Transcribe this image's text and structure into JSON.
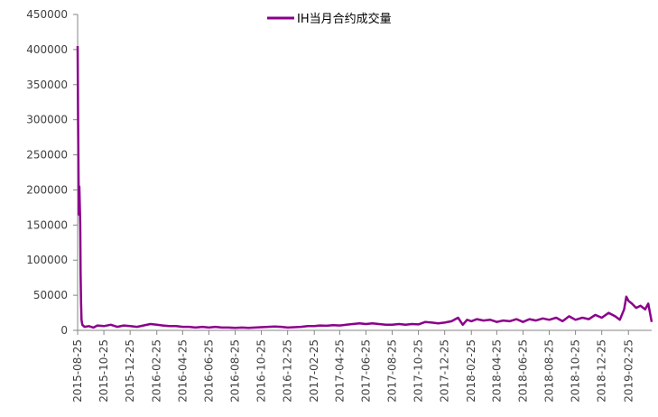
{
  "chart_data": {
    "type": "line",
    "title": "",
    "xlabel": "",
    "ylabel": "",
    "ylim": [
      0,
      450000
    ],
    "y_ticks": [
      0,
      50000,
      100000,
      150000,
      200000,
      250000,
      300000,
      350000,
      400000,
      450000
    ],
    "y_tick_labels": [
      "0",
      "50000",
      "100000",
      "150000",
      "200000",
      "250000",
      "300000",
      "350000",
      "400000",
      "450000"
    ],
    "x_tick_labels": [
      "2015-08-25",
      "2015-10-25",
      "2015-12-25",
      "2016-02-25",
      "2016-04-25",
      "2016-06-25",
      "2016-08-25",
      "2016-10-25",
      "2016-12-25",
      "2017-02-25",
      "2017-04-25",
      "2017-06-25",
      "2017-08-25",
      "2017-10-25",
      "2017-12-25",
      "2018-02-25",
      "2018-04-25",
      "2018-06-25",
      "2018-08-25",
      "2018-10-25",
      "2018-12-25",
      "2019-02-25"
    ],
    "xlim": [
      "2015-08-25",
      "2019-04-20"
    ],
    "grid": false,
    "legend_position": "top",
    "color": "#8B008B",
    "series": [
      {
        "name": "IH当月合约成交量",
        "points": [
          [
            "2015-08-25",
            405000
          ],
          [
            "2015-08-26",
            300000
          ],
          [
            "2015-08-27",
            220000
          ],
          [
            "2015-08-28",
            165000
          ],
          [
            "2015-08-29",
            205000
          ],
          [
            "2015-08-31",
            150000
          ],
          [
            "2015-09-01",
            80000
          ],
          [
            "2015-09-02",
            40000
          ],
          [
            "2015-09-03",
            15000
          ],
          [
            "2015-09-05",
            8000
          ],
          [
            "2015-09-10",
            5000
          ],
          [
            "2015-09-20",
            6000
          ],
          [
            "2015-10-01",
            4000
          ],
          [
            "2015-10-10",
            7000
          ],
          [
            "2015-10-25",
            6000
          ],
          [
            "2015-11-10",
            8000
          ],
          [
            "2015-11-25",
            5000
          ],
          [
            "2015-12-10",
            7000
          ],
          [
            "2015-12-25",
            6000
          ],
          [
            "2016-01-10",
            5000
          ],
          [
            "2016-01-25",
            7000
          ],
          [
            "2016-02-10",
            9000
          ],
          [
            "2016-02-25",
            8000
          ],
          [
            "2016-03-10",
            7000
          ],
          [
            "2016-03-25",
            6000
          ],
          [
            "2016-04-10",
            6000
          ],
          [
            "2016-04-25",
            5000
          ],
          [
            "2016-05-10",
            5000
          ],
          [
            "2016-05-25",
            4000
          ],
          [
            "2016-06-10",
            5000
          ],
          [
            "2016-06-25",
            4000
          ],
          [
            "2016-07-10",
            5000
          ],
          [
            "2016-07-25",
            4000
          ],
          [
            "2016-08-10",
            4000
          ],
          [
            "2016-08-25",
            3500
          ],
          [
            "2016-09-10",
            4000
          ],
          [
            "2016-09-25",
            3500
          ],
          [
            "2016-10-10",
            4000
          ],
          [
            "2016-10-25",
            4500
          ],
          [
            "2016-11-10",
            5000
          ],
          [
            "2016-11-25",
            5500
          ],
          [
            "2016-12-10",
            5000
          ],
          [
            "2016-12-25",
            4000
          ],
          [
            "2017-01-10",
            4500
          ],
          [
            "2017-01-25",
            5000
          ],
          [
            "2017-02-10",
            6000
          ],
          [
            "2017-02-25",
            6000
          ],
          [
            "2017-03-10",
            7000
          ],
          [
            "2017-03-25",
            6500
          ],
          [
            "2017-04-10",
            7500
          ],
          [
            "2017-04-25",
            7000
          ],
          [
            "2017-05-10",
            8000
          ],
          [
            "2017-05-25",
            9000
          ],
          [
            "2017-06-10",
            10000
          ],
          [
            "2017-06-25",
            9000
          ],
          [
            "2017-07-10",
            10000
          ],
          [
            "2017-07-25",
            9000
          ],
          [
            "2017-08-10",
            8000
          ],
          [
            "2017-08-25",
            8000
          ],
          [
            "2017-09-10",
            9000
          ],
          [
            "2017-09-25",
            8000
          ],
          [
            "2017-10-10",
            9000
          ],
          [
            "2017-10-25",
            8500
          ],
          [
            "2017-11-10",
            12000
          ],
          [
            "2017-11-25",
            11000
          ],
          [
            "2017-12-10",
            10000
          ],
          [
            "2017-12-25",
            11000
          ],
          [
            "2018-01-10",
            13000
          ],
          [
            "2018-01-25",
            18000
          ],
          [
            "2018-02-05",
            8000
          ],
          [
            "2018-02-15",
            15000
          ],
          [
            "2018-02-25",
            13000
          ],
          [
            "2018-03-10",
            16000
          ],
          [
            "2018-03-25",
            14000
          ],
          [
            "2018-04-10",
            15000
          ],
          [
            "2018-04-25",
            12000
          ],
          [
            "2018-05-10",
            14000
          ],
          [
            "2018-05-25",
            13000
          ],
          [
            "2018-06-10",
            16000
          ],
          [
            "2018-06-25",
            12000
          ],
          [
            "2018-07-10",
            16000
          ],
          [
            "2018-07-25",
            14000
          ],
          [
            "2018-08-10",
            17000
          ],
          [
            "2018-08-25",
            15000
          ],
          [
            "2018-09-10",
            18000
          ],
          [
            "2018-09-25",
            13000
          ],
          [
            "2018-10-10",
            20000
          ],
          [
            "2018-10-25",
            15000
          ],
          [
            "2018-11-10",
            18000
          ],
          [
            "2018-11-25",
            16000
          ],
          [
            "2018-12-10",
            22000
          ],
          [
            "2018-12-25",
            18000
          ],
          [
            "2019-01-10",
            25000
          ],
          [
            "2019-01-25",
            20000
          ],
          [
            "2019-02-05",
            15000
          ],
          [
            "2019-02-15",
            30000
          ],
          [
            "2019-02-20",
            48000
          ],
          [
            "2019-02-25",
            42000
          ],
          [
            "2019-03-05",
            38000
          ],
          [
            "2019-03-15",
            32000
          ],
          [
            "2019-03-25",
            35000
          ],
          [
            "2019-04-05",
            30000
          ],
          [
            "2019-04-12",
            38000
          ],
          [
            "2019-04-20",
            12000
          ]
        ]
      }
    ]
  }
}
